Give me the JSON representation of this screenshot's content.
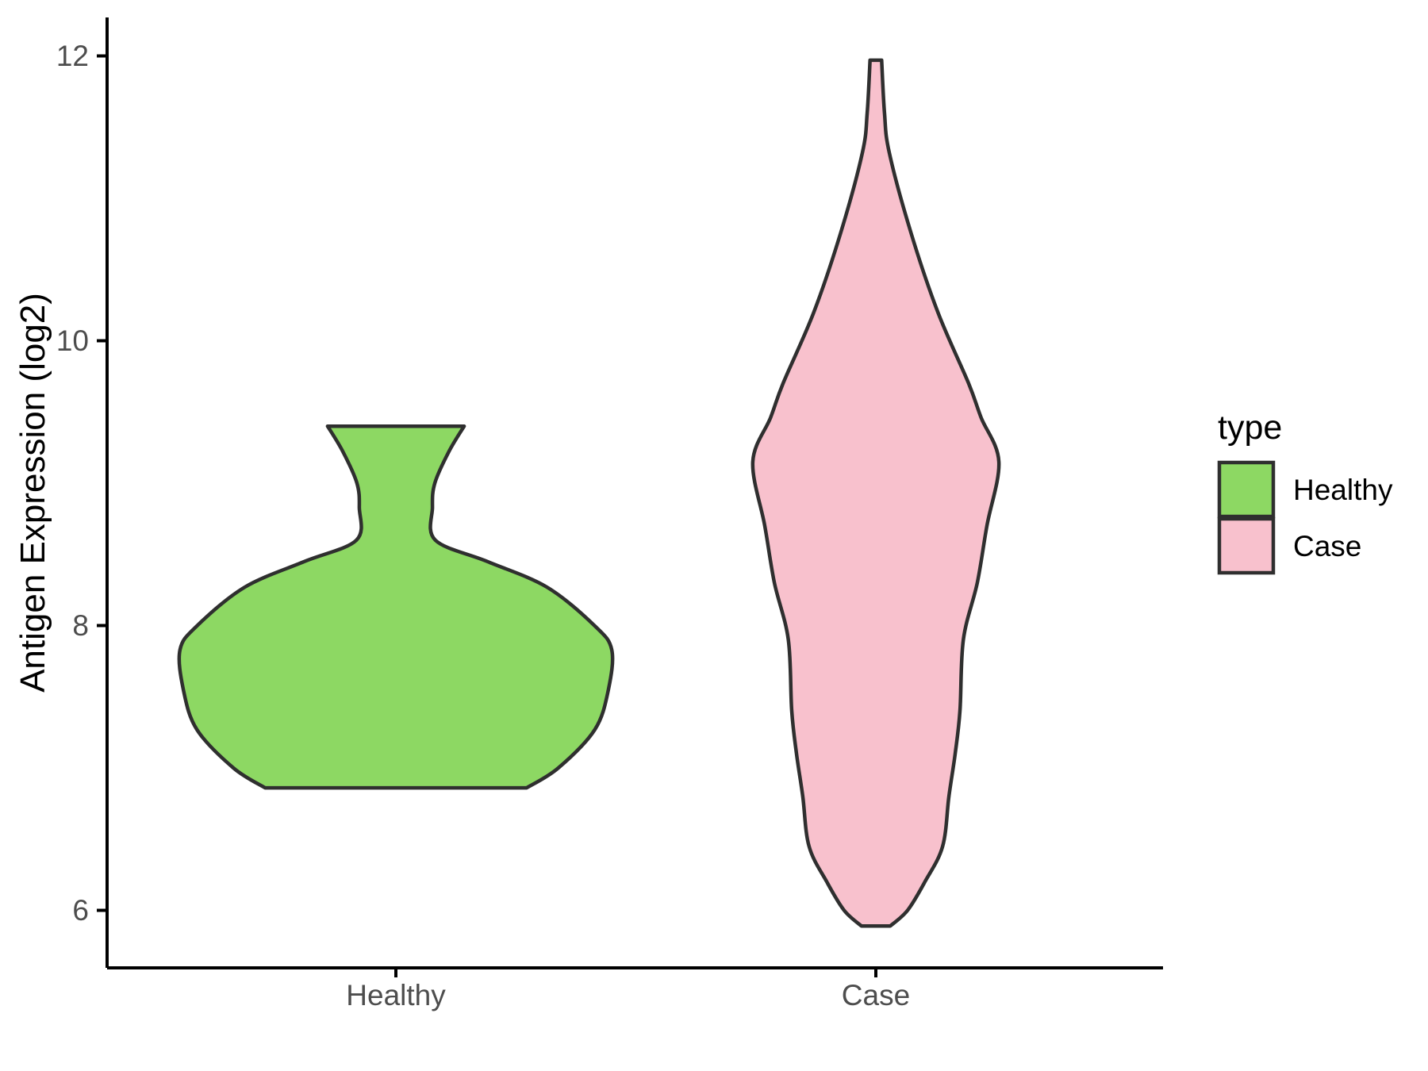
{
  "chart_data": {
    "type": "violin",
    "title": "",
    "xlabel": "",
    "ylabel": "Antigen Expression (log2)",
    "categories": [
      "Healthy",
      "Case"
    ],
    "y_ticks": [
      "6",
      "8",
      "10",
      "12"
    ],
    "y_tick_values": [
      6,
      8,
      10,
      12
    ],
    "ylim": [
      5.55,
      12.33
    ],
    "grid": "off",
    "legend": {
      "title": "type",
      "position": "right",
      "entries": [
        {
          "label": "Healthy",
          "color": "#8dd863"
        },
        {
          "label": "Case",
          "color": "#f8c1cd"
        }
      ]
    },
    "outline_color": "#2f2f2f",
    "axis_color": "#000000",
    "series": [
      {
        "name": "Healthy",
        "fill": "#8dd863",
        "y_range": [
          6.86,
          9.4
        ],
        "density_profile_note": "pairs of [expression_log2, half_width_in_category_units]",
        "profile": [
          [
            6.86,
            0.272
          ],
          [
            7.0,
            0.338
          ],
          [
            7.27,
            0.414
          ],
          [
            7.55,
            0.442
          ],
          [
            7.83,
            0.449
          ],
          [
            8.0,
            0.413
          ],
          [
            8.27,
            0.314
          ],
          [
            8.45,
            0.19
          ],
          [
            8.6,
            0.082
          ],
          [
            8.83,
            0.076
          ],
          [
            9.0,
            0.081
          ],
          [
            9.22,
            0.11
          ],
          [
            9.4,
            0.142
          ]
        ]
      },
      {
        "name": "Case",
        "fill": "#f8c1cd",
        "y_range": [
          5.89,
          11.97
        ],
        "density_profile_note": "pairs of [expression_log2, half_width_in_category_units]",
        "profile": [
          [
            5.89,
            0.03
          ],
          [
            6.0,
            0.066
          ],
          [
            6.2,
            0.102
          ],
          [
            6.45,
            0.139
          ],
          [
            6.8,
            0.152
          ],
          [
            7.1,
            0.165
          ],
          [
            7.4,
            0.175
          ],
          [
            7.9,
            0.182
          ],
          [
            8.3,
            0.211
          ],
          [
            8.7,
            0.231
          ],
          [
            9.15,
            0.256
          ],
          [
            9.46,
            0.219
          ],
          [
            9.7,
            0.193
          ],
          [
            10.2,
            0.129
          ],
          [
            10.76,
            0.073
          ],
          [
            11.32,
            0.028
          ],
          [
            11.6,
            0.018
          ],
          [
            11.97,
            0.012
          ]
        ]
      }
    ]
  }
}
